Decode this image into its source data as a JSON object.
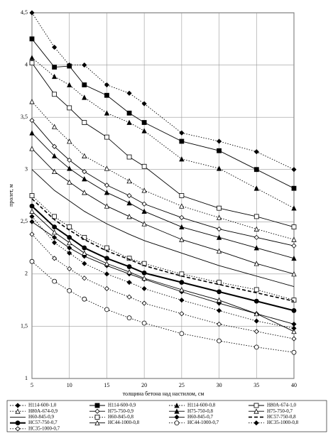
{
  "chart_data": {
    "type": "line",
    "x_label": "толщина бетона над настилом, см",
    "y_label": "пролет, м",
    "x": [
      5,
      8,
      10,
      12,
      15,
      18,
      20,
      25,
      30,
      35,
      40
    ],
    "xlim": [
      5,
      40
    ],
    "xticks": [
      5,
      10,
      15,
      20,
      25,
      30,
      35,
      40
    ],
    "ylim": [
      1,
      4.5
    ],
    "yticks": [
      1,
      {
        "value": 1.5,
        "label": "1,5"
      },
      2,
      {
        "value": 2.5,
        "label": "2,5"
      },
      3,
      {
        "value": 3.5,
        "label": "3,5"
      },
      4,
      {
        "value": 4.5,
        "label": "4,5"
      }
    ],
    "grid": true,
    "legend": "bottom",
    "series": [
      {
        "name": "Н114-600-1,0",
        "color": "#000000",
        "dash": "dotted",
        "marker": "diamond",
        "values": [
          4.5,
          4.17,
          4.0,
          4.0,
          3.81,
          3.73,
          3.63,
          3.35,
          3.27,
          3.17,
          3.0
        ]
      },
      {
        "name": "Н114-600-0,9",
        "color": "#000000",
        "dash": "solid",
        "marker": "square",
        "values": [
          4.25,
          3.98,
          3.99,
          3.81,
          3.71,
          3.54,
          3.45,
          3.27,
          3.18,
          3.0,
          2.82
        ]
      },
      {
        "name": "Н114-600-0,8",
        "color": "#000000",
        "dash": "dotted",
        "marker": "triangle",
        "values": [
          4.07,
          3.89,
          3.81,
          3.69,
          3.54,
          3.45,
          3.37,
          3.1,
          3.01,
          2.82,
          2.63
        ]
      },
      {
        "name": "Н80А-674-1,0",
        "color": "#000000",
        "dash": "solid",
        "marker": "open-square",
        "values": [
          4.02,
          3.72,
          3.59,
          3.45,
          3.31,
          3.12,
          3.03,
          2.75,
          2.63,
          2.55,
          2.45
        ]
      },
      {
        "name": "Н80А-674-0,9",
        "color": "#000000",
        "dash": "dotted",
        "marker": "open-triangle",
        "values": [
          3.65,
          3.41,
          3.27,
          3.13,
          3.01,
          2.89,
          2.8,
          2.65,
          2.54,
          2.43,
          2.33
        ]
      },
      {
        "name": "Н75-750-0,9",
        "color": "#000000",
        "dash": "solid",
        "marker": "open-diamond",
        "values": [
          3.47,
          3.22,
          3.09,
          2.98,
          2.85,
          2.75,
          2.67,
          2.54,
          2.43,
          2.35,
          2.27
        ]
      },
      {
        "name": "Н75-750-0,8",
        "color": "#000000",
        "dash": "solid",
        "marker": "triangle",
        "values": [
          3.35,
          3.13,
          3.01,
          2.91,
          2.78,
          2.68,
          2.6,
          2.45,
          2.35,
          2.25,
          2.15
        ]
      },
      {
        "name": "Н75-750-0,7",
        "color": "#000000",
        "dash": "solid",
        "marker": "open-triangle",
        "values": [
          3.2,
          2.98,
          2.88,
          2.78,
          2.65,
          2.55,
          2.48,
          2.33,
          2.22,
          2.1,
          2.0
        ]
      },
      {
        "name": "Н60-845-0,9",
        "color": "#000000",
        "dash": "solid",
        "marker": "none",
        "values": [
          3.0,
          2.8,
          2.7,
          2.6,
          2.48,
          2.38,
          2.32,
          2.2,
          2.08,
          1.98,
          1.88
        ]
      },
      {
        "name": "Н60-845-0,8",
        "color": "#000000",
        "dash": "dotted",
        "marker": "open-square",
        "values": [
          2.75,
          2.55,
          2.45,
          2.35,
          2.25,
          2.15,
          2.1,
          2.0,
          1.92,
          1.85,
          1.75
        ]
      },
      {
        "name": "Н60-845-0,7",
        "color": "#000000",
        "dash": "solid",
        "marker": "diamond",
        "values": [
          2.5,
          2.35,
          2.25,
          2.17,
          2.08,
          2.0,
          1.95,
          1.83,
          1.72,
          1.62,
          1.52
        ]
      },
      {
        "name": "НС57-750-0,8",
        "color": "#000000",
        "dash": "dashed",
        "marker": "none",
        "values": [
          2.72,
          2.52,
          2.42,
          2.33,
          2.22,
          2.14,
          2.08,
          1.98,
          1.9,
          1.82,
          1.74
        ]
      },
      {
        "name": "НС57-750-0,7",
        "color": "#000000",
        "dash": "thick",
        "marker": "circle",
        "values": [
          2.65,
          2.45,
          2.35,
          2.25,
          2.15,
          2.07,
          2.01,
          1.92,
          1.83,
          1.74,
          1.65
        ]
      },
      {
        "name": "НС44-1000-0,8",
        "color": "#000000",
        "dash": "solid",
        "marker": "open-triangle",
        "values": [
          2.6,
          2.4,
          2.3,
          2.2,
          2.1,
          2.02,
          1.96,
          1.85,
          1.75,
          1.62,
          1.45
        ]
      },
      {
        "name": "НС44-1000-0,7",
        "color": "#000000",
        "dash": "dotted",
        "marker": "open-circle",
        "values": [
          2.12,
          1.93,
          1.84,
          1.76,
          1.66,
          1.58,
          1.53,
          1.43,
          1.36,
          1.3,
          1.25
        ]
      },
      {
        "name": "НС35-1000-0,8",
        "color": "#000000",
        "dash": "dotted",
        "marker": "diamond",
        "values": [
          2.55,
          2.3,
          2.2,
          2.1,
          2.0,
          1.92,
          1.86,
          1.75,
          1.65,
          1.55,
          1.48
        ]
      },
      {
        "name": "НС35-1000-0,7",
        "color": "#000000",
        "dash": "dotted",
        "marker": "open-diamond",
        "values": [
          2.38,
          2.15,
          2.05,
          1.96,
          1.86,
          1.78,
          1.72,
          1.62,
          1.52,
          1.45,
          1.38
        ]
      }
    ]
  }
}
